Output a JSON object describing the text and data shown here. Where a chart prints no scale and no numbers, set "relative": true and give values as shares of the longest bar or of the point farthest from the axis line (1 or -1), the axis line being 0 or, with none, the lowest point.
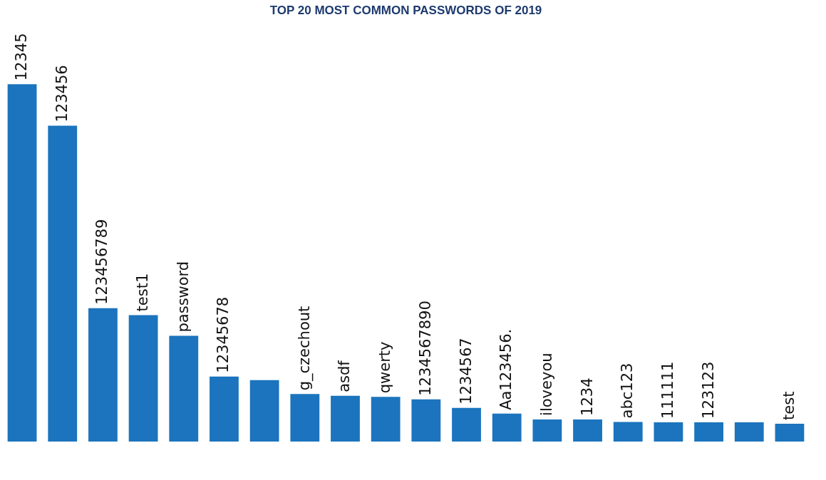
{
  "chart_data": {
    "type": "bar",
    "title": "TOP 20 MOST COMMON PASSWORDS OF 2019",
    "relative": true,
    "categories": [
      "12345",
      "123456",
      "123456789",
      "test1",
      "password",
      "12345678",
      null,
      "g_czechout",
      "asdf",
      "qwerty",
      "1234567890",
      "1234567",
      "Aa123456.",
      "iloveyou",
      "1234",
      "abc123",
      "111111",
      "123123",
      null,
      "test"
    ],
    "values": [
      1,
      0.884,
      0.373,
      0.354,
      0.296,
      0.182,
      0.172,
      0.133,
      0.128,
      0.125,
      0.118,
      0.094,
      0.078,
      0.062,
      0.062,
      0.055,
      0.054,
      0.054,
      0.054,
      0.05
    ],
    "color": "#1b74bd"
  }
}
